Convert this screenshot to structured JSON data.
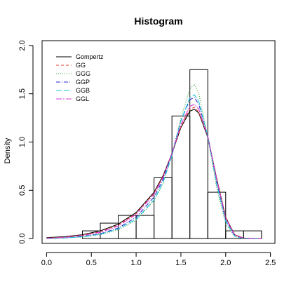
{
  "chart_data": {
    "type": "histogram",
    "title": "Histogram",
    "xlabel": "",
    "ylabel": "Density",
    "xlim": [
      -0.05,
      2.55
    ],
    "ylim": [
      -0.05,
      2.05
    ],
    "x_ticks": [
      0.0,
      0.5,
      1.0,
      1.5,
      2.0,
      2.5
    ],
    "x_tick_labels": [
      "0.0",
      "0.5",
      "1.0",
      "1.5",
      "2.0",
      "2.5"
    ],
    "y_ticks": [
      0.0,
      0.5,
      1.0,
      1.5,
      2.0
    ],
    "y_tick_labels": [
      "0.0",
      "0.5",
      "1.0",
      "1.5",
      "2.0"
    ],
    "grid": false,
    "legend_position": "top-left",
    "bins": [
      {
        "x0": 0.4,
        "x1": 0.6,
        "density": 0.08
      },
      {
        "x0": 0.6,
        "x1": 0.8,
        "density": 0.16
      },
      {
        "x0": 0.8,
        "x1": 1.0,
        "density": 0.24
      },
      {
        "x0": 1.0,
        "x1": 1.2,
        "density": 0.24
      },
      {
        "x0": 1.2,
        "x1": 1.4,
        "density": 0.63
      },
      {
        "x0": 1.4,
        "x1": 1.6,
        "density": 1.27
      },
      {
        "x0": 1.6,
        "x1": 1.8,
        "density": 1.75
      },
      {
        "x0": 1.8,
        "x1": 2.0,
        "density": 0.48
      },
      {
        "x0": 2.0,
        "x1": 2.2,
        "density": 0.08
      },
      {
        "x0": 2.2,
        "x1": 2.4,
        "density": 0.08
      }
    ],
    "series": [
      {
        "name": "Gompertz",
        "color": "#000000",
        "dash": "none",
        "x": [
          0.0,
          0.2,
          0.4,
          0.6,
          0.8,
          1.0,
          1.2,
          1.3,
          1.4,
          1.5,
          1.6,
          1.65,
          1.7,
          1.8,
          1.9,
          2.0,
          2.1,
          2.2,
          2.3,
          2.4
        ],
        "y": [
          0.01,
          0.02,
          0.04,
          0.08,
          0.15,
          0.27,
          0.48,
          0.65,
          0.88,
          1.15,
          1.32,
          1.34,
          1.3,
          1.05,
          0.62,
          0.22,
          0.04,
          0.005,
          0.0,
          0.0
        ]
      },
      {
        "name": "GG",
        "color": "#e8392f",
        "dash": "4,3",
        "x": [
          0.0,
          0.2,
          0.4,
          0.6,
          0.8,
          1.0,
          1.2,
          1.3,
          1.4,
          1.5,
          1.6,
          1.65,
          1.7,
          1.8,
          1.9,
          2.0,
          2.1,
          2.2,
          2.3,
          2.4
        ],
        "y": [
          0.005,
          0.015,
          0.035,
          0.07,
          0.14,
          0.26,
          0.47,
          0.64,
          0.88,
          1.16,
          1.34,
          1.36,
          1.31,
          1.06,
          0.62,
          0.22,
          0.04,
          0.005,
          0.0,
          0.0
        ]
      },
      {
        "name": "GGG",
        "color": "#3aa13a",
        "dash": "1,2",
        "x": [
          0.0,
          0.2,
          0.4,
          0.6,
          0.8,
          1.0,
          1.2,
          1.3,
          1.4,
          1.5,
          1.6,
          1.65,
          1.7,
          1.8,
          1.9,
          2.0,
          2.1,
          2.2,
          2.3,
          2.4
        ],
        "y": [
          0.0,
          0.005,
          0.015,
          0.04,
          0.09,
          0.19,
          0.39,
          0.57,
          0.86,
          1.25,
          1.55,
          1.6,
          1.5,
          1.05,
          0.52,
          0.15,
          0.02,
          0.0,
          0.0,
          0.0
        ]
      },
      {
        "name": "GGP",
        "color": "#2b2bd1",
        "dash": "6,2,1,2",
        "x": [
          0.0,
          0.2,
          0.4,
          0.6,
          0.8,
          1.0,
          1.2,
          1.3,
          1.4,
          1.5,
          1.6,
          1.65,
          1.7,
          1.8,
          1.9,
          2.0,
          2.1,
          2.2,
          2.3,
          2.4
        ],
        "y": [
          0.0,
          0.008,
          0.022,
          0.05,
          0.11,
          0.22,
          0.43,
          0.61,
          0.88,
          1.22,
          1.44,
          1.46,
          1.39,
          1.06,
          0.58,
          0.19,
          0.03,
          0.002,
          0.0,
          0.0
        ]
      },
      {
        "name": "GGB",
        "color": "#1fc6d6",
        "dash": "8,3",
        "x": [
          0.0,
          0.2,
          0.4,
          0.6,
          0.8,
          1.0,
          1.2,
          1.3,
          1.4,
          1.5,
          1.6,
          1.65,
          1.7,
          1.8,
          1.9,
          2.0,
          2.1,
          2.2,
          2.3,
          2.4
        ],
        "y": [
          0.0,
          0.006,
          0.018,
          0.045,
          0.1,
          0.2,
          0.4,
          0.58,
          0.86,
          1.22,
          1.46,
          1.49,
          1.42,
          1.06,
          0.56,
          0.18,
          0.025,
          0.001,
          0.0,
          0.0
        ]
      },
      {
        "name": "GGL",
        "color": "#d63ad6",
        "dash": "8,2,2,2",
        "x": [
          0.0,
          0.2,
          0.4,
          0.6,
          0.8,
          1.0,
          1.2,
          1.3,
          1.4,
          1.5,
          1.6,
          1.65,
          1.7,
          1.8,
          1.9,
          2.0,
          2.1,
          2.2,
          2.3,
          2.4
        ],
        "y": [
          0.003,
          0.012,
          0.03,
          0.065,
          0.13,
          0.25,
          0.46,
          0.63,
          0.88,
          1.18,
          1.37,
          1.39,
          1.34,
          1.06,
          0.61,
          0.21,
          0.035,
          0.004,
          0.0,
          0.0
        ]
      }
    ]
  }
}
